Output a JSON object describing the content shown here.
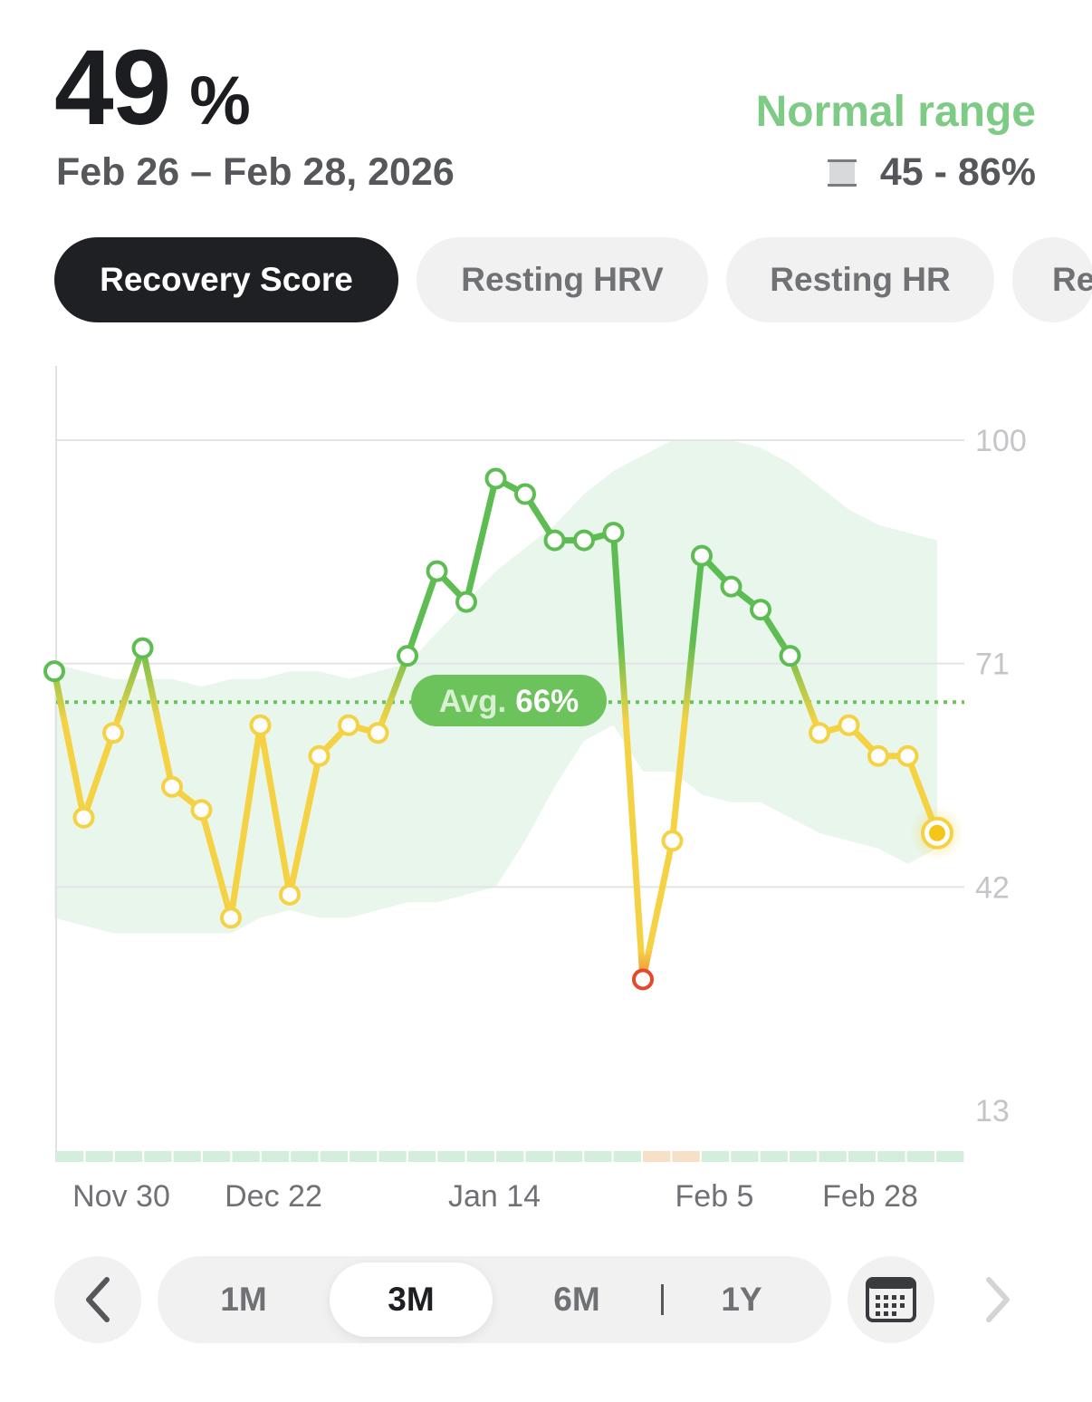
{
  "summary": {
    "score_value": "49",
    "score_unit": "%",
    "date_range": "Feb 26 – Feb 28, 2026",
    "normal_range_title": "Normal range",
    "normal_range_value": "45 - 86%"
  },
  "tabs": [
    {
      "label": "Recovery Score",
      "active": true
    },
    {
      "label": "Resting HRV",
      "active": false
    },
    {
      "label": "Resting HR",
      "active": false
    },
    {
      "label": "Re",
      "active": false
    }
  ],
  "chart_data": {
    "type": "line",
    "y_ticks": [
      "100",
      "71",
      "42",
      "13"
    ],
    "x_ticks": [
      "Nov 30",
      "Dec 22",
      "Jan 14",
      "Feb 5",
      "Feb 28"
    ],
    "average_label_prefix": "Avg.",
    "average_label_value": "66%",
    "average": 66,
    "ylim": [
      13,
      100
    ],
    "grid": true,
    "values": [
      70,
      51,
      62,
      73,
      55,
      52,
      38,
      63,
      41,
      59,
      63,
      62,
      72,
      83,
      79,
      95,
      93,
      87,
      87,
      88,
      30,
      48,
      85,
      81,
      78,
      72,
      62,
      63,
      59,
      59,
      49
    ],
    "band_upper": [
      71,
      70,
      69,
      69,
      69,
      68,
      69,
      69,
      70,
      70,
      69,
      70,
      71,
      75,
      79,
      83,
      86,
      89,
      93,
      96,
      98,
      100,
      100,
      100,
      99,
      97,
      94,
      91,
      89,
      88,
      87
    ],
    "band_lower": [
      38,
      37,
      36,
      36,
      36,
      36,
      36,
      38,
      39,
      38,
      38,
      39,
      40,
      40,
      41,
      42,
      48,
      55,
      61,
      63,
      57,
      57,
      54,
      53,
      53,
      51,
      49,
      48,
      47,
      45,
      47
    ],
    "colors": {
      "high": "#5dbd52",
      "mid": "#f5d244",
      "low": "#e5482c",
      "band": "#e8f6ec",
      "avg": "#6cc35c"
    },
    "bottom_strip_highlight_indices": [
      20,
      21
    ]
  },
  "controls": {
    "periods": [
      "1M",
      "3M",
      "6M",
      "1Y"
    ],
    "active_period": "3M",
    "prev_icon": "chevron-left-icon",
    "calendar_icon": "calendar-icon",
    "next_icon": "chevron-right-icon"
  }
}
